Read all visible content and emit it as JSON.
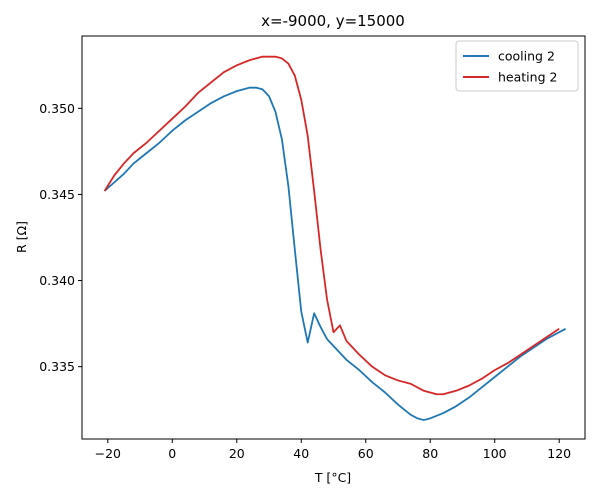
{
  "chart_data": {
    "type": "line",
    "title": "x=-9000, y=15000",
    "xlabel": "T [°C]",
    "ylabel": "R [Ω]",
    "xlim": [
      -28,
      128
    ],
    "ylim": [
      0.3308,
      0.3542
    ],
    "xticks": [
      -20,
      0,
      20,
      40,
      60,
      80,
      100,
      120
    ],
    "xtick_labels": [
      "−20",
      "0",
      "20",
      "40",
      "60",
      "80",
      "100",
      "120"
    ],
    "yticks": [
      0.335,
      0.34,
      0.345,
      0.35
    ],
    "ytick_labels": [
      "0.335",
      "0.340",
      "0.345",
      "0.350"
    ],
    "grid": false,
    "legend_position": "top-right",
    "series": [
      {
        "name": "cooling 2",
        "color": "#1f77b4",
        "x": [
          -21,
          -18,
          -15,
          -12,
          -8,
          -4,
          0,
          4,
          8,
          12,
          16,
          20,
          24,
          26,
          28,
          30,
          32,
          34,
          36,
          38,
          40,
          42,
          44,
          46,
          48,
          50,
          54,
          58,
          62,
          66,
          70,
          74,
          76,
          78,
          80,
          84,
          88,
          92,
          96,
          100,
          104,
          108,
          112,
          116,
          120,
          122
        ],
        "y": [
          0.3452,
          0.3457,
          0.3462,
          0.3468,
          0.3474,
          0.348,
          0.3487,
          0.3493,
          0.3498,
          0.3503,
          0.3507,
          0.351,
          0.3512,
          0.3512,
          0.3511,
          0.3507,
          0.3498,
          0.3482,
          0.3455,
          0.3418,
          0.3382,
          0.3364,
          0.3381,
          0.3373,
          0.3366,
          0.3362,
          0.3354,
          0.3348,
          0.3341,
          0.3335,
          0.3328,
          0.3322,
          0.332,
          0.3319,
          0.332,
          0.3323,
          0.3327,
          0.3332,
          0.3338,
          0.3344,
          0.335,
          0.3356,
          0.3361,
          0.3366,
          0.337,
          0.3372
        ]
      },
      {
        "name": "heating 2",
        "color": "#d62728",
        "x": [
          -21,
          -18,
          -15,
          -12,
          -8,
          -4,
          0,
          4,
          8,
          12,
          16,
          20,
          24,
          28,
          32,
          34,
          36,
          38,
          40,
          42,
          44,
          46,
          48,
          50,
          52,
          54,
          58,
          62,
          66,
          70,
          74,
          78,
          82,
          84,
          88,
          92,
          96,
          100,
          104,
          108,
          112,
          116,
          120
        ],
        "y": [
          0.3452,
          0.3461,
          0.3468,
          0.3474,
          0.348,
          0.3487,
          0.3494,
          0.3501,
          0.3509,
          0.3515,
          0.3521,
          0.3525,
          0.3528,
          0.353,
          0.353,
          0.3529,
          0.3526,
          0.3519,
          0.3505,
          0.3484,
          0.3452,
          0.3418,
          0.3389,
          0.337,
          0.3374,
          0.3365,
          0.3357,
          0.335,
          0.3345,
          0.3342,
          0.334,
          0.3336,
          0.3334,
          0.3334,
          0.3336,
          0.3339,
          0.3343,
          0.3348,
          0.3352,
          0.3357,
          0.3362,
          0.3367,
          0.3372
        ]
      }
    ]
  }
}
